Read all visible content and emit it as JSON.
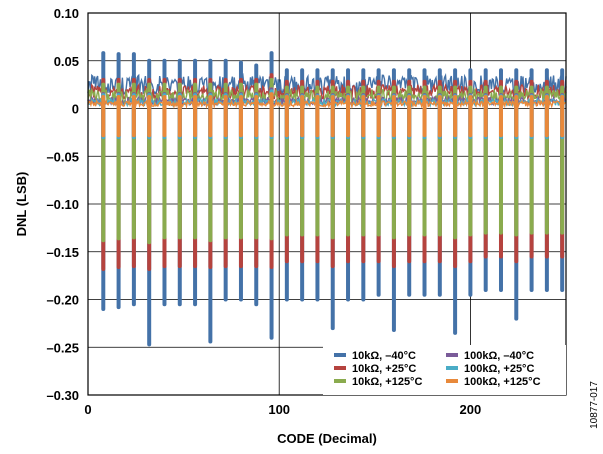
{
  "chart_data": {
    "type": "line",
    "xlabel": "CODE (Decimal)",
    "ylabel": "DNL (LSB)",
    "xlim": [
      0,
      250
    ],
    "ylim": [
      -0.3,
      0.1
    ],
    "x_ticks": [
      0,
      100,
      200
    ],
    "y_ticks": [
      0.1,
      0.05,
      0,
      -0.05,
      -0.1,
      -0.15,
      -0.2,
      -0.25,
      -0.3
    ],
    "y_tick_labels": [
      "0.10",
      "0.05",
      "0",
      "–0.05",
      "–0.10",
      "–0.15",
      "–0.20",
      "–0.25",
      "–0.30"
    ],
    "x_tick_labels": [
      "0",
      "100",
      "200"
    ],
    "grid": true,
    "legend_position": "bottom-right",
    "figure_id": "10877-017",
    "spike_codes": [
      8,
      16,
      24,
      32,
      40,
      48,
      56,
      64,
      72,
      80,
      88,
      96,
      104,
      112,
      120,
      128,
      136,
      144,
      152,
      160,
      168,
      176,
      184,
      192,
      200,
      208,
      216,
      224,
      232,
      240,
      248
    ],
    "series": [
      {
        "name": "10kΩ, –40°C",
        "color": "#4472a8",
        "baseline_range": [
          0.015,
          0.035
        ],
        "spike_peaks": [
          0.058,
          0.057,
          0.057,
          0.05,
          0.05,
          0.05,
          0.05,
          0.05,
          0.05,
          0.048,
          0.045,
          0.058,
          0.04,
          0.04,
          0.04,
          0.04,
          0.04,
          0.04,
          0.04,
          0.04,
          0.04,
          0.04,
          0.04,
          0.04,
          0.04,
          0.04,
          0.04,
          0.04,
          0.04,
          0.04,
          0.04
        ],
        "spike_minimums": [
          -0.21,
          -0.208,
          -0.205,
          -0.247,
          -0.205,
          -0.205,
          -0.205,
          -0.244,
          -0.2,
          -0.2,
          -0.205,
          -0.24,
          -0.2,
          -0.2,
          -0.2,
          -0.23,
          -0.2,
          -0.2,
          -0.195,
          -0.232,
          -0.195,
          -0.195,
          -0.195,
          -0.235,
          -0.195,
          -0.19,
          -0.19,
          -0.22,
          -0.19,
          -0.19,
          -0.19
        ]
      },
      {
        "name": "10kΩ, +25°C",
        "color": "#b5433e",
        "baseline_range": [
          0.01,
          0.025
        ],
        "spike_peaks": [
          0.03,
          0.03,
          0.03,
          0.03,
          0.03,
          0.03,
          0.03,
          0.03,
          0.03,
          0.03,
          0.03,
          0.035,
          0.028,
          0.028,
          0.028,
          0.028,
          0.028,
          0.028,
          0.028,
          0.028,
          0.028,
          0.028,
          0.028,
          0.028,
          0.028,
          0.028,
          0.028,
          0.028,
          0.028,
          0.028,
          0.028
        ],
        "spike_minimums": [
          -0.168,
          -0.166,
          -0.165,
          -0.168,
          -0.165,
          -0.165,
          -0.165,
          -0.166,
          -0.165,
          -0.165,
          -0.165,
          -0.166,
          -0.16,
          -0.16,
          -0.16,
          -0.165,
          -0.16,
          -0.16,
          -0.16,
          -0.165,
          -0.16,
          -0.16,
          -0.16,
          -0.165,
          -0.16,
          -0.155,
          -0.155,
          -0.16,
          -0.155,
          -0.155,
          -0.155
        ]
      },
      {
        "name": "10kΩ, +125°C",
        "color": "#8aab4e",
        "baseline_range": [
          0.005,
          0.02
        ],
        "spike_peaks": [
          0.025,
          0.025,
          0.025,
          0.025,
          0.025,
          0.025,
          0.025,
          0.025,
          0.025,
          0.025,
          0.025,
          0.03,
          0.022,
          0.022,
          0.022,
          0.022,
          0.022,
          0.022,
          0.022,
          0.022,
          0.022,
          0.022,
          0.022,
          0.022,
          0.022,
          0.022,
          0.022,
          0.022,
          0.022,
          0.022,
          0.022
        ],
        "spike_minimums": [
          -0.138,
          -0.136,
          -0.135,
          -0.14,
          -0.135,
          -0.135,
          -0.135,
          -0.138,
          -0.135,
          -0.135,
          -0.135,
          -0.136,
          -0.132,
          -0.132,
          -0.132,
          -0.135,
          -0.132,
          -0.132,
          -0.132,
          -0.135,
          -0.132,
          -0.132,
          -0.132,
          -0.135,
          -0.132,
          -0.13,
          -0.13,
          -0.132,
          -0.13,
          -0.13,
          -0.13
        ]
      },
      {
        "name": "100kΩ, –40°C",
        "color": "#7a5b99",
        "baseline_range": [
          0.004,
          0.012
        ],
        "spike_peaks": [
          0.015,
          0.015,
          0.015,
          0.015,
          0.015,
          0.015,
          0.015,
          0.015,
          0.015,
          0.015,
          0.015,
          0.02,
          0.014,
          0.014,
          0.014,
          0.014,
          0.014,
          0.014,
          0.014,
          0.014,
          0.014,
          0.014,
          0.014,
          0.014,
          0.014,
          0.014,
          0.014,
          0.014,
          0.014,
          0.014,
          0.014
        ],
        "spike_minimums": [
          -0.03,
          -0.03,
          -0.03,
          -0.03,
          -0.03,
          -0.03,
          -0.03,
          -0.03,
          -0.03,
          -0.03,
          -0.03,
          -0.03,
          -0.03,
          -0.03,
          -0.03,
          -0.03,
          -0.03,
          -0.03,
          -0.03,
          -0.03,
          -0.03,
          -0.03,
          -0.03,
          -0.03,
          -0.03,
          -0.03,
          -0.03,
          -0.03,
          -0.03,
          -0.03,
          -0.03
        ]
      },
      {
        "name": "100kΩ, +25°C",
        "color": "#4aacc6",
        "baseline_range": [
          0.003,
          0.01
        ],
        "spike_peaks": [
          0.014,
          0.014,
          0.014,
          0.014,
          0.014,
          0.014,
          0.014,
          0.014,
          0.014,
          0.014,
          0.014,
          0.018,
          0.013,
          0.013,
          0.013,
          0.013,
          0.013,
          0.013,
          0.013,
          0.013,
          0.013,
          0.013,
          0.013,
          0.013,
          0.013,
          0.013,
          0.013,
          0.013,
          0.013,
          0.013,
          0.013
        ],
        "spike_minimums": [
          -0.03,
          -0.03,
          -0.03,
          -0.03,
          -0.03,
          -0.03,
          -0.03,
          -0.03,
          -0.03,
          -0.03,
          -0.03,
          -0.03,
          -0.03,
          -0.03,
          -0.03,
          -0.03,
          -0.03,
          -0.03,
          -0.03,
          -0.03,
          -0.03,
          -0.03,
          -0.03,
          -0.03,
          -0.03,
          -0.03,
          -0.03,
          -0.03,
          -0.03,
          -0.03,
          -0.03
        ]
      },
      {
        "name": "100kΩ, +125°C",
        "color": "#e8893b",
        "baseline_range": [
          0.002,
          0.008
        ],
        "spike_peaks": [
          0.012,
          0.012,
          0.012,
          0.012,
          0.012,
          0.012,
          0.012,
          0.012,
          0.012,
          0.012,
          0.012,
          0.015,
          0.012,
          0.012,
          0.012,
          0.012,
          0.012,
          0.012,
          0.012,
          0.012,
          0.012,
          0.012,
          0.012,
          0.012,
          0.012,
          0.012,
          0.012,
          0.012,
          0.012,
          0.012,
          0.012
        ],
        "spike_minimums": [
          -0.028,
          -0.028,
          -0.028,
          -0.028,
          -0.028,
          -0.028,
          -0.028,
          -0.028,
          -0.028,
          -0.028,
          -0.028,
          -0.028,
          -0.028,
          -0.028,
          -0.028,
          -0.028,
          -0.028,
          -0.028,
          -0.028,
          -0.028,
          -0.028,
          -0.028,
          -0.028,
          -0.028,
          -0.028,
          -0.028,
          -0.028,
          -0.028,
          -0.028,
          -0.028,
          -0.028
        ]
      }
    ]
  }
}
